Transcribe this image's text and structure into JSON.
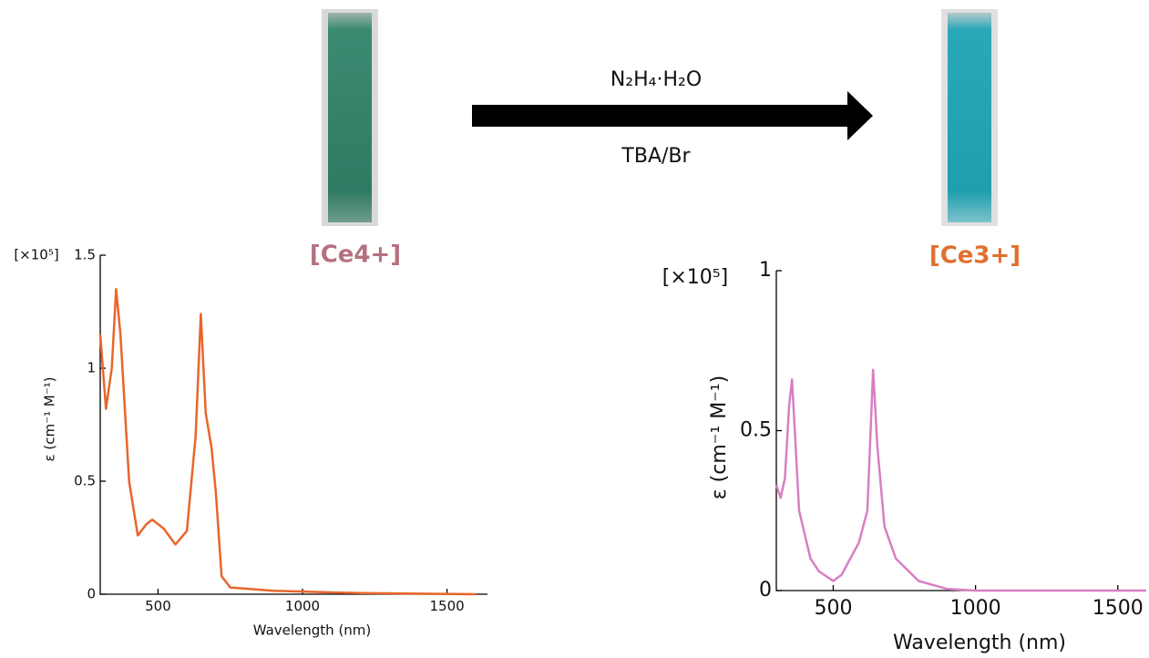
{
  "scheme": {
    "reagent": "N₂H₄·H₂O",
    "conditions": "TBA/Br",
    "left_label": "[Ce4+]",
    "right_label": "[Ce3+]"
  },
  "chart_data": [
    {
      "type": "line",
      "color": "#e8662a",
      "y_multiplier": "[×10⁵]",
      "y_label": "ε (cm⁻¹ M⁻¹)",
      "x_label": "Wavelength (nm)",
      "xlim": [
        300,
        1640
      ],
      "ylim": [
        0,
        1.5
      ],
      "xticks": [
        500,
        1000,
        1500
      ],
      "yticks": [
        0,
        0.5,
        1,
        1.5
      ],
      "x": [
        300,
        320,
        340,
        355,
        370,
        400,
        430,
        460,
        480,
        520,
        560,
        600,
        630,
        648,
        665,
        685,
        700,
        720,
        750,
        900,
        1200,
        1600
      ],
      "values": [
        1.15,
        0.82,
        1.0,
        1.35,
        1.15,
        0.5,
        0.26,
        0.31,
        0.33,
        0.29,
        0.22,
        0.28,
        0.7,
        1.24,
        0.8,
        0.65,
        0.45,
        0.08,
        0.03,
        0.015,
        0.005,
        0.0
      ]
    },
    {
      "type": "line",
      "color": "#d77fc4",
      "y_multiplier": "[×10⁵]",
      "y_label": "ε (cm⁻¹ M⁻¹)",
      "x_label": "Wavelength (nm)",
      "xlim": [
        300,
        1600
      ],
      "ylim": [
        0,
        1
      ],
      "xticks": [
        500,
        1000,
        1500
      ],
      "yticks": [
        0,
        0.5,
        1
      ],
      "x": [
        300,
        315,
        330,
        345,
        355,
        365,
        380,
        420,
        450,
        500,
        530,
        560,
        590,
        620,
        640,
        655,
        680,
        720,
        800,
        900,
        1000,
        1600
      ],
      "values": [
        0.33,
        0.29,
        0.35,
        0.58,
        0.66,
        0.5,
        0.25,
        0.1,
        0.06,
        0.03,
        0.05,
        0.1,
        0.15,
        0.25,
        0.69,
        0.45,
        0.2,
        0.1,
        0.03,
        0.005,
        0,
        0
      ]
    }
  ]
}
